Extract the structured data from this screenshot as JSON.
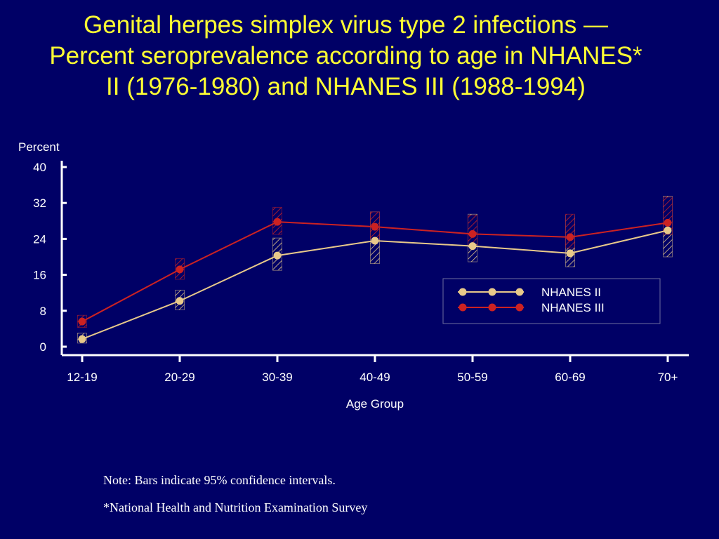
{
  "slide": {
    "title": "Genital herpes simplex virus type 2 infections — Percent seroprevalence according to age in NHANES* II (1976-1980) and NHANES III (1988-1994)",
    "note": "Note: Bars indicate 95% confidence intervals.",
    "footnote": "*National Health and Nutrition Examination Survey"
  },
  "colors": {
    "background": "#000066",
    "title": "#ffff33",
    "axis": "#ffffff",
    "nhanes_ii": "#e8c98a",
    "nhanes_iii": "#cc2222"
  },
  "chart_data": {
    "type": "line",
    "title": "",
    "xlabel": "Age Group",
    "ylabel": "Percent",
    "ylim": [
      0,
      40
    ],
    "yticks": [
      0,
      8,
      16,
      24,
      32,
      40
    ],
    "categories": [
      "12-19",
      "20-29",
      "30-39",
      "40-49",
      "50-59",
      "60-69",
      "70+"
    ],
    "legend_position": "right",
    "error_bars": "95% confidence intervals (hatched bars)",
    "series": [
      {
        "name": "NHANES II",
        "color": "#e8c98a",
        "values": [
          1.7,
          10.2,
          20.3,
          23.6,
          22.4,
          20.8,
          25.9
        ],
        "ci_low": [
          0.8,
          8.2,
          17.0,
          18.5,
          18.9,
          17.8,
          20.0
        ],
        "ci_high": [
          3.0,
          12.6,
          24.2,
          30.0,
          29.5,
          29.2,
          33.5
        ]
      },
      {
        "name": "NHANES III",
        "color": "#cc2222",
        "values": [
          5.6,
          17.2,
          27.8,
          26.7,
          25.1,
          24.4,
          27.6
        ],
        "ci_low": [
          4.3,
          15.0,
          25.0,
          24.0,
          22.8,
          22.0,
          25.0
        ],
        "ci_high": [
          7.0,
          19.6,
          31.0,
          30.0,
          29.3,
          29.5,
          33.3
        ]
      }
    ]
  }
}
